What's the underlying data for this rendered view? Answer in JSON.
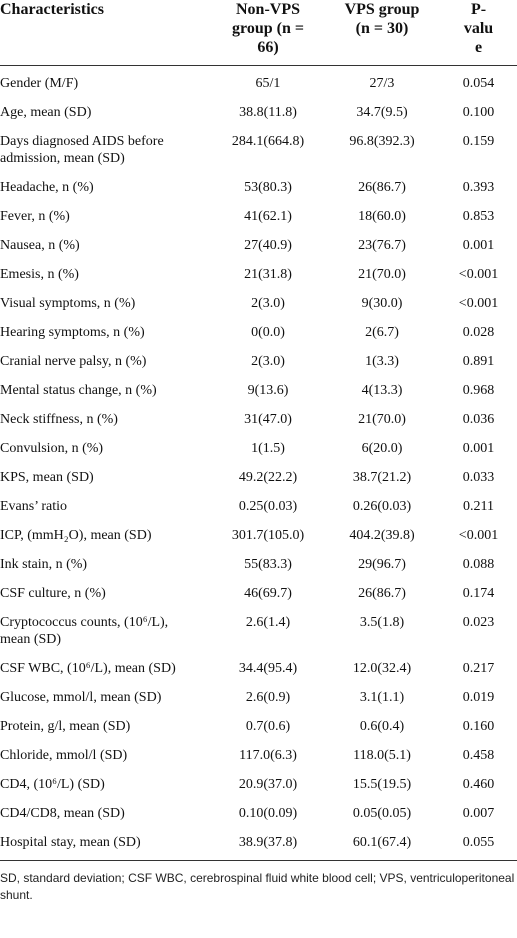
{
  "table": {
    "header": [
      "Characteristics",
      "Non-VPS group (n = 66)",
      "VPS group (n = 30)",
      "P-value"
    ],
    "rows": [
      [
        "Gender (M/F)",
        "65/1",
        "27/3",
        "0.054"
      ],
      [
        "Age, mean (SD)",
        "38.8(11.8)",
        "34.7(9.5)",
        "0.100"
      ],
      [
        "Days diagnosed AIDS before admission, mean (SD)",
        "284.1(664.8)",
        "96.8(392.3)",
        "0.159"
      ],
      [
        "Headache, n (%)",
        "53(80.3)",
        "26(86.7)",
        "0.393"
      ],
      [
        "Fever, n (%)",
        "41(62.1)",
        "18(60.0)",
        "0.853"
      ],
      [
        "Nausea, n (%)",
        "27(40.9)",
        "23(76.7)",
        "0.001"
      ],
      [
        "Emesis, n (%)",
        "21(31.8)",
        "21(70.0)",
        "<0.001"
      ],
      [
        "Visual symptoms, n (%)",
        "2(3.0)",
        "9(30.0)",
        "<0.001"
      ],
      [
        "Hearing symptoms, n (%)",
        "0(0.0)",
        "2(6.7)",
        "0.028"
      ],
      [
        "Cranial nerve palsy, n (%)",
        "2(3.0)",
        "1(3.3)",
        "0.891"
      ],
      [
        "Mental status change, n (%)",
        "9(13.6)",
        "4(13.3)",
        "0.968"
      ],
      [
        "Neck stiffness, n (%)",
        "31(47.0)",
        "21(70.0)",
        "0.036"
      ],
      [
        "Convulsion, n (%)",
        "1(1.5)",
        "6(20.0)",
        "0.001"
      ],
      [
        "KPS, mean (SD)",
        "49.2(22.2)",
        "38.7(21.2)",
        "0.033"
      ],
      [
        "Evans’ ratio",
        "0.25(0.03)",
        "0.26(0.03)",
        "0.211"
      ],
      [
        "ICP, (mmH₂O), mean (SD)",
        "301.7(105.0)",
        "404.2(39.8)",
        "<0.001"
      ],
      [
        "Ink stain, n (%)",
        "55(83.3)",
        "29(96.7)",
        "0.088"
      ],
      [
        "CSF culture, n (%)",
        "46(69.7)",
        "26(86.7)",
        "0.174"
      ],
      [
        "Cryptococcus counts, (10⁶/L), mean (SD)",
        "2.6(1.4)",
        "3.5(1.8)",
        "0.023"
      ],
      [
        "CSF WBC, (10⁶/L), mean (SD)",
        "34.4(95.4)",
        "12.0(32.4)",
        "0.217"
      ],
      [
        "Glucose, mmol/l, mean (SD)",
        "2.6(0.9)",
        "3.1(1.1)",
        "0.019"
      ],
      [
        "Protein, g/l, mean (SD)",
        "0.7(0.6)",
        "0.6(0.4)",
        "0.160"
      ],
      [
        "Chloride, mmol/l (SD)",
        "117.0(6.3)",
        "118.0(5.1)",
        "0.458"
      ],
      [
        "CD4, (10⁶/L) (SD)",
        "20.9(37.0)",
        "15.5(19.5)",
        "0.460"
      ],
      [
        "CD4/CD8, mean (SD)",
        "0.10(0.09)",
        "0.05(0.05)",
        "0.007"
      ],
      [
        "Hospital stay, mean (SD)",
        "38.9(37.8)",
        "60.1(67.4)",
        "0.055"
      ]
    ]
  },
  "footnote": "SD, standard deviation; CSF WBC, cerebrospinal fluid white blood cell; VPS, ventriculoperitoneal shunt."
}
